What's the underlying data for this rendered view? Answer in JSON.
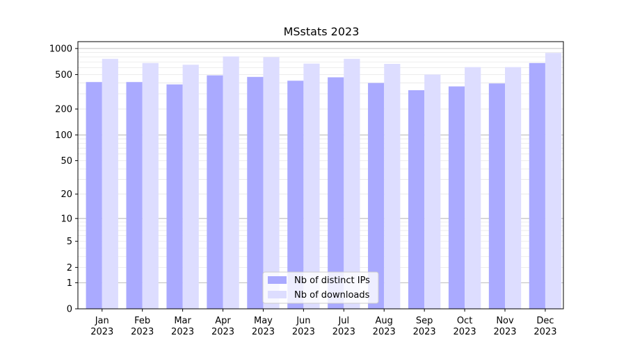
{
  "chart_data": {
    "type": "bar",
    "title": "MSstats 2023",
    "xlabel": "",
    "ylabel": "",
    "yscale": "log (values +1, zero shown at bottom)",
    "ylim": [
      0,
      1200
    ],
    "grid": "horizontal, major and minor",
    "legend_position": "bottom-center",
    "categories": [
      [
        "Jan",
        "2023"
      ],
      [
        "Feb",
        "2023"
      ],
      [
        "Mar",
        "2023"
      ],
      [
        "Apr",
        "2023"
      ],
      [
        "May",
        "2023"
      ],
      [
        "Jun",
        "2023"
      ],
      [
        "Jul",
        "2023"
      ],
      [
        "Aug",
        "2023"
      ],
      [
        "Sep",
        "2023"
      ],
      [
        "Oct",
        "2023"
      ],
      [
        "Nov",
        "2023"
      ],
      [
        "Dec",
        "2023"
      ]
    ],
    "y_ticks": [
      {
        "value": 0,
        "label": "0"
      },
      {
        "value": 1,
        "label": "1"
      },
      {
        "value": 2,
        "label": "2"
      },
      {
        "value": 5,
        "label": "5"
      },
      {
        "value": 10,
        "label": "10"
      },
      {
        "value": 20,
        "label": "20"
      },
      {
        "value": 50,
        "label": "50"
      },
      {
        "value": 100,
        "label": "100"
      },
      {
        "value": 200,
        "label": "200"
      },
      {
        "value": 500,
        "label": "500"
      },
      {
        "value": 1000,
        "label": "1000"
      }
    ],
    "series": [
      {
        "name": "Nb of distinct IPs",
        "color": "#aaaaff",
        "values": [
          410,
          410,
          385,
          490,
          470,
          425,
          465,
          400,
          330,
          365,
          395,
          680
        ]
      },
      {
        "name": "Nb of downloads",
        "color": "#ddddff",
        "values": [
          760,
          680,
          650,
          810,
          795,
          670,
          760,
          665,
          500,
          610,
          610,
          890
        ]
      }
    ]
  }
}
